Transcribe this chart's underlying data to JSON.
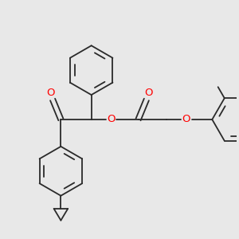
{
  "background_color": "#e8e8e8",
  "bond_color": "#2a2a2a",
  "oxygen_color": "#ff0000",
  "line_width": 1.3,
  "figsize": [
    3.0,
    3.0
  ],
  "dpi": 100,
  "xlim": [
    0,
    10
  ],
  "ylim": [
    0,
    10
  ]
}
